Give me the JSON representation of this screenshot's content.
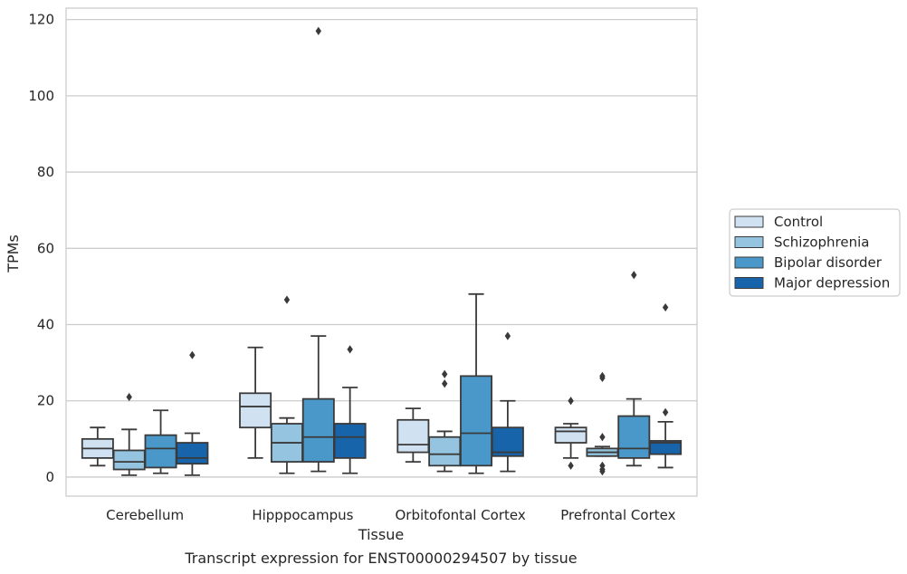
{
  "chart_data": {
    "type": "box",
    "xlabel": "Tissue",
    "ylabel": "TPMs",
    "caption": "Transcript expression for ENST00000294507 by tissue",
    "ylim": [
      -5,
      123
    ],
    "yticks": [
      0,
      20,
      40,
      60,
      80,
      100,
      120
    ],
    "grid": "horizontal",
    "legend_position": "outside-right",
    "categories": [
      "Cerebellum",
      "Hipppocampus",
      "Orbitofontal Cortex",
      "Prefrontal Cortex"
    ],
    "series": [
      {
        "name": "Control",
        "color": "#d0e1f2",
        "boxes": [
          {
            "whislo": 3,
            "q1": 5,
            "med": 7.5,
            "q3": 10,
            "whishi": 13,
            "fliers": []
          },
          {
            "whislo": 5,
            "q1": 13,
            "med": 18.5,
            "q3": 22,
            "whishi": 34,
            "fliers": []
          },
          {
            "whislo": 4,
            "q1": 6.5,
            "med": 8.5,
            "q3": 15,
            "whishi": 18,
            "fliers": []
          },
          {
            "whislo": 5,
            "q1": 9,
            "med": 12,
            "q3": 13,
            "whishi": 14,
            "fliers": [
              20,
              3
            ]
          }
        ]
      },
      {
        "name": "Schizophrenia",
        "color": "#94c4df",
        "boxes": [
          {
            "whislo": 0.5,
            "q1": 2,
            "med": 4,
            "q3": 7,
            "whishi": 12.5,
            "fliers": [
              21
            ]
          },
          {
            "whislo": 1,
            "q1": 4,
            "med": 9,
            "q3": 14,
            "whishi": 15.5,
            "fliers": [
              46.5
            ]
          },
          {
            "whislo": 1.5,
            "q1": 3,
            "med": 6,
            "q3": 10.5,
            "whishi": 12,
            "fliers": [
              27,
              24.5
            ]
          },
          {
            "whislo": 5.5,
            "q1": 5.5,
            "med": 6.5,
            "q3": 7.5,
            "whishi": 8,
            "fliers": [
              26.5,
              26,
              10.5,
              3,
              2,
              1.5
            ]
          }
        ]
      },
      {
        "name": "Bipolar disorder",
        "color": "#4a98c9",
        "boxes": [
          {
            "whislo": 1,
            "q1": 2.5,
            "med": 7.5,
            "q3": 11,
            "whishi": 17.5,
            "fliers": []
          },
          {
            "whislo": 1.5,
            "q1": 4,
            "med": 10.5,
            "q3": 20.5,
            "whishi": 37,
            "fliers": [
              117
            ]
          },
          {
            "whislo": 1,
            "q1": 3,
            "med": 11.5,
            "q3": 26.5,
            "whishi": 48,
            "fliers": []
          },
          {
            "whislo": 3,
            "q1": 5,
            "med": 7.5,
            "q3": 16,
            "whishi": 20.5,
            "fliers": [
              53
            ]
          }
        ]
      },
      {
        "name": "Major depression",
        "color": "#1764ab",
        "boxes": [
          {
            "whislo": 0.5,
            "q1": 3.5,
            "med": 5,
            "q3": 9,
            "whishi": 11.5,
            "fliers": [
              32
            ]
          },
          {
            "whislo": 1,
            "q1": 5,
            "med": 10.5,
            "q3": 14,
            "whishi": 23.5,
            "fliers": [
              33.5
            ]
          },
          {
            "whislo": 1.5,
            "q1": 5.5,
            "med": 6.5,
            "q3": 13,
            "whishi": 20,
            "fliers": [
              37
            ]
          },
          {
            "whislo": 2.5,
            "q1": 6,
            "med": 9,
            "q3": 9.5,
            "whishi": 14.5,
            "fliers": [
              44.5,
              17
            ]
          }
        ]
      }
    ]
  }
}
